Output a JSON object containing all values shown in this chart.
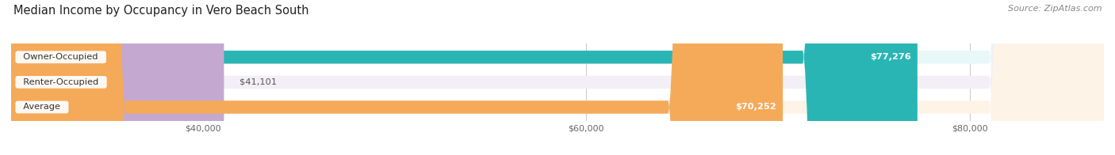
{
  "title": "Median Income by Occupancy in Vero Beach South",
  "source": "Source: ZipAtlas.com",
  "categories": [
    "Owner-Occupied",
    "Renter-Occupied",
    "Average"
  ],
  "values": [
    77276,
    41101,
    70252
  ],
  "bar_colors": [
    "#2ab5b5",
    "#c4a8d0",
    "#f5aa5a"
  ],
  "bar_bg_colors": [
    "#e8f7f7",
    "#f3eff6",
    "#fdf3e7"
  ],
  "label_values": [
    "$77,276",
    "$41,101",
    "$70,252"
  ],
  "xmin": 30000,
  "xmax": 87000,
  "xticks": [
    40000,
    60000,
    80000
  ],
  "xtick_labels": [
    "$40,000",
    "$60,000",
    "$80,000"
  ],
  "title_fontsize": 10.5,
  "source_fontsize": 8,
  "bar_height": 0.52,
  "background_color": "#ffffff"
}
